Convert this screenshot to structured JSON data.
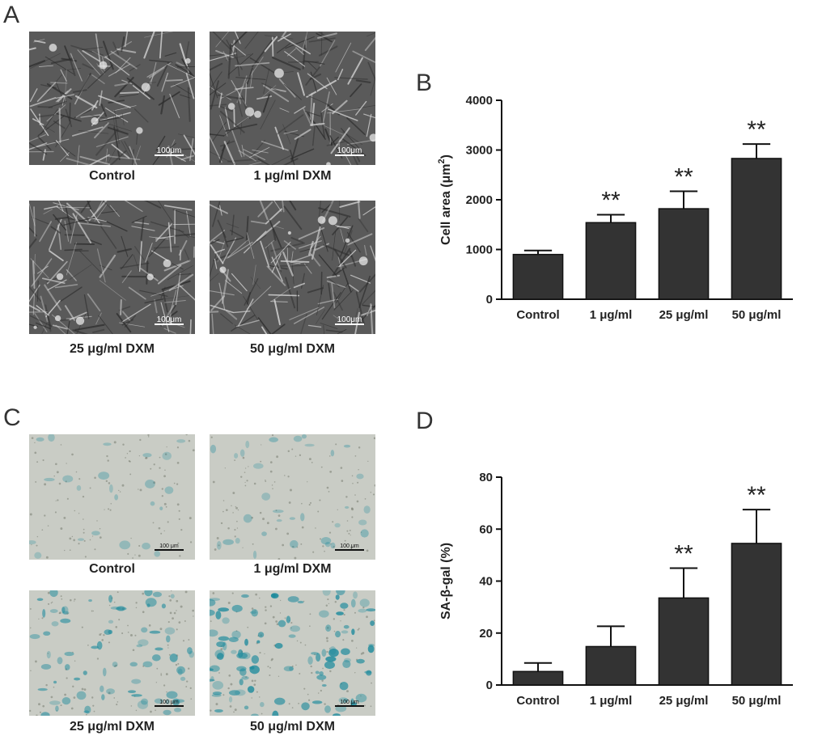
{
  "panels": {
    "A": {
      "letter": "A",
      "images": [
        {
          "caption": "Control",
          "scale_bar": "100μm",
          "style": "phase-contrast"
        },
        {
          "caption": "1 μg/ml DXM",
          "scale_bar": "100μm",
          "style": "phase-contrast"
        },
        {
          "caption": "25 μg/ml DXM",
          "scale_bar": "100μm",
          "style": "phase-contrast"
        },
        {
          "caption": "50 μg/ml DXM",
          "scale_bar": "100μm",
          "style": "phase-contrast"
        }
      ]
    },
    "B": {
      "letter": "B"
    },
    "C": {
      "letter": "C",
      "images": [
        {
          "caption": "Control",
          "scale_bar": "100 μm",
          "style": "sa-beta-gal",
          "density": 0.12
        },
        {
          "caption": "1 μg/ml DXM",
          "scale_bar": "100 μm",
          "style": "sa-beta-gal",
          "density": 0.2
        },
        {
          "caption": "25 μg/ml DXM",
          "scale_bar": "100 μm",
          "style": "sa-beta-gal",
          "density": 0.6
        },
        {
          "caption": "50 μg/ml DXM",
          "scale_bar": "100 μm",
          "style": "sa-beta-gal",
          "density": 0.9
        }
      ]
    },
    "D": {
      "letter": "D"
    }
  },
  "colors": {
    "bar_fill": "#333333",
    "axis": "#111111",
    "phase_bg": "#5a5a5a",
    "stain_blue": "#1c8a9c",
    "stain_bg": "#c9ccc5"
  },
  "chart_data": [
    {
      "panel": "B",
      "type": "bar",
      "categories": [
        "Control",
        "1 μg/ml",
        "25 μg/ml",
        "50 μg/ml"
      ],
      "values": [
        900,
        1540,
        1820,
        2830
      ],
      "errors": [
        80,
        160,
        350,
        290
      ],
      "significance": [
        "",
        "**",
        "**",
        "**"
      ],
      "ylabel_main": "Cell area (μm",
      "ylabel_sup": "2",
      "ylabel_close": ")",
      "ylim": [
        0,
        4000
      ],
      "yticks": [
        "0",
        "1000",
        "2000",
        "3000",
        "4000"
      ],
      "ytick_values": [
        0,
        1000,
        2000,
        3000,
        4000
      ]
    },
    {
      "panel": "D",
      "type": "bar",
      "categories": [
        "Control",
        "1 μg/ml",
        "25 μg/ml",
        "50 μg/ml"
      ],
      "values": [
        5.2,
        14.8,
        33.5,
        54.5
      ],
      "errors": [
        3.3,
        7.8,
        11.5,
        13.0
      ],
      "significance": [
        "",
        "",
        "**",
        "**"
      ],
      "ylabel_main": "SA-β-gal (%)",
      "ylabel_sup": "",
      "ylabel_close": "",
      "ylim": [
        0,
        80
      ],
      "yticks": [
        "0",
        "20",
        "40",
        "60",
        "80"
      ],
      "ytick_values": [
        0,
        20,
        40,
        60,
        80
      ]
    }
  ]
}
